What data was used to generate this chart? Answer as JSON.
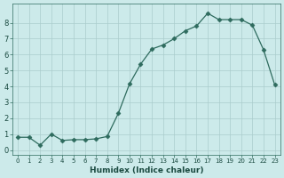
{
  "x_data": [
    0,
    1,
    2,
    3,
    4,
    5,
    6,
    7,
    8,
    9,
    10,
    11,
    12,
    13,
    14,
    15,
    16,
    17,
    18,
    19,
    20,
    21,
    22,
    23
  ],
  "y_data": [
    0.8,
    0.8,
    0.3,
    1.0,
    0.6,
    0.65,
    0.65,
    0.7,
    0.85,
    2.3,
    4.15,
    5.4,
    6.35,
    6.6,
    7.0,
    7.5,
    7.8,
    8.6,
    8.2,
    8.2,
    8.2,
    7.85,
    6.3,
    4.1
  ],
  "line_color": "#2e6b5e",
  "marker": "D",
  "marker_size": 2.5,
  "xlabel": "Humidex (Indice chaleur)",
  "xlim": [
    -0.5,
    23.5
  ],
  "ylim": [
    -0.3,
    9.2
  ],
  "yticks": [
    0,
    1,
    2,
    3,
    4,
    5,
    6,
    7,
    8
  ],
  "xticks": [
    0,
    1,
    2,
    3,
    4,
    5,
    6,
    7,
    8,
    9,
    10,
    11,
    12,
    13,
    14,
    15,
    16,
    17,
    18,
    19,
    20,
    21,
    22,
    23
  ],
  "background_color": "#cceaea",
  "grid_color": "#aacccc",
  "tick_color": "#2e6b5e",
  "label_color": "#1a4a40"
}
